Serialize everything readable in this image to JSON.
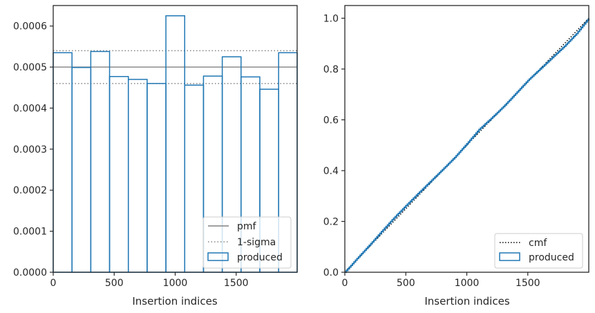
{
  "chart_data": [
    {
      "type": "histogram",
      "xlabel": "Insertion indices",
      "ylabel": "",
      "xlim": [
        0,
        2000
      ],
      "ylim": [
        0,
        0.00065
      ],
      "xticks": [
        0,
        500,
        1000,
        1500
      ],
      "xtick_labels": [
        "0",
        "500",
        "1000",
        "1500"
      ],
      "yticks": [
        0,
        0.0001,
        0.0002,
        0.0003,
        0.0004,
        0.0005,
        0.0006
      ],
      "ytick_labels": [
        "0.0000",
        "0.0001",
        "0.0002",
        "0.0003",
        "0.0004",
        "0.0005",
        "0.0006"
      ],
      "bin_edges": [
        0,
        154,
        308,
        462,
        616,
        770,
        924,
        1078,
        1232,
        1386,
        1540,
        1694,
        1848,
        2000
      ],
      "values": [
        0.000535,
        0.000499,
        0.000538,
        0.000477,
        0.00047,
        0.00046,
        0.000625,
        0.000456,
        0.000478,
        0.000525,
        0.000476,
        0.000446,
        0.000535
      ],
      "pmf": 0.0005,
      "sigma_band": [
        0.00046,
        0.00054
      ],
      "grid": false,
      "legend": {
        "placement": "lower-right",
        "entries": [
          {
            "label": "pmf",
            "style": "solid",
            "color": "#808080"
          },
          {
            "label": "1-sigma",
            "style": "dotted",
            "color": "#808080"
          },
          {
            "label": "produced",
            "style": "step",
            "color": "#1f77b4"
          }
        ]
      }
    },
    {
      "type": "line",
      "xlabel": "Insertion indices",
      "ylabel": "",
      "xlim": [
        0,
        2000
      ],
      "ylim": [
        0,
        1.05
      ],
      "xticks": [
        0,
        500,
        1000,
        1500
      ],
      "xtick_labels": [
        "0",
        "500",
        "1000",
        "1500"
      ],
      "yticks": [
        0,
        0.2,
        0.4,
        0.6,
        0.8,
        1.0
      ],
      "ytick_labels": [
        "0.0",
        "0.2",
        "0.4",
        "0.6",
        "0.8",
        "1.0"
      ],
      "series": [
        {
          "name": "cmf",
          "style": "dotted",
          "color": "#000000",
          "x": [
            0,
            2000
          ],
          "y": [
            0,
            1.0
          ]
        },
        {
          "name": "produced",
          "style": "step",
          "color": "#1f77b4",
          "x": [
            0,
            100,
            200,
            300,
            400,
            500,
            600,
            700,
            800,
            900,
            1000,
            1100,
            1200,
            1300,
            1400,
            1500,
            1600,
            1700,
            1800,
            1900,
            2000
          ],
          "y": [
            0,
            0.054,
            0.106,
            0.16,
            0.213,
            0.262,
            0.31,
            0.357,
            0.404,
            0.452,
            0.506,
            0.562,
            0.606,
            0.652,
            0.703,
            0.755,
            0.8,
            0.845,
            0.89,
            0.94,
            1.0
          ]
        }
      ],
      "grid": false,
      "legend": {
        "placement": "lower-right",
        "entries": [
          {
            "label": "cmf",
            "style": "dotted",
            "color": "#000000"
          },
          {
            "label": "produced",
            "style": "step",
            "color": "#1f77b4"
          }
        ]
      }
    }
  ]
}
